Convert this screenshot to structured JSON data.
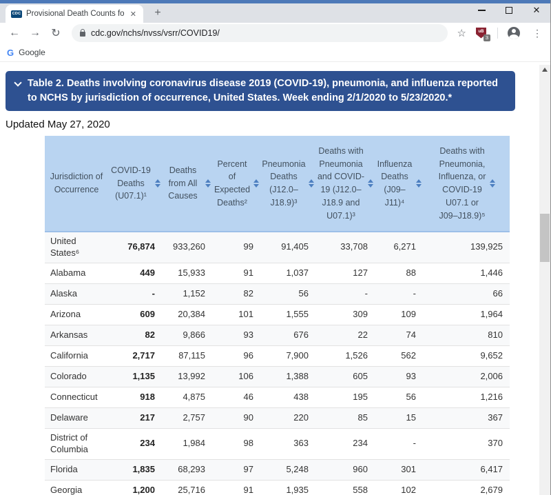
{
  "window": {
    "close_glyph": "✕"
  },
  "browser": {
    "favicon_text": "CDC",
    "tab_title": "Provisional Death Counts for Cor",
    "new_tab_glyph": "+",
    "tab_close_glyph": "✕",
    "back_glyph": "←",
    "forward_glyph": "→",
    "reload_glyph": "↻",
    "url": "cdc.gov/nchs/nvss/vsrr/COVID19/",
    "star_glyph": "☆",
    "extension_initials": "uB",
    "extension_badge": "3",
    "menu_glyph": "⋮",
    "bookmark_icon": "G",
    "bookmark_label": "Google"
  },
  "page": {
    "banner_title": "Table 2. Deaths involving coronavirus disease 2019 (COVID-19), pneumonia, and influenza reported to NCHS by jurisdiction of occurrence, United States. Week ending 2/1/2020 to 5/23/2020.*",
    "updated_text": "Updated May 27, 2020"
  },
  "table": {
    "columns": [
      {
        "label": "Jurisdiction of Occurrence",
        "sortable": false
      },
      {
        "label": "COVID-19 Deaths (U07.1)¹",
        "sortable": true
      },
      {
        "label": "Deaths from All Causes",
        "sortable": true
      },
      {
        "label": "Percent of Expected Deaths²",
        "sortable": true
      },
      {
        "label": "Pneumonia Deaths (J12.0–J18.9)³",
        "sortable": true
      },
      {
        "label": "Deaths with Pneumonia and COVID-19 (J12.0–J18.9 and U07.1)³",
        "sortable": true
      },
      {
        "label": "Influenza Deaths (J09–J11)⁴",
        "sortable": true
      },
      {
        "label": "Deaths with Pneumonia, Influenza, or COVID-19 U07.1 or J09–J18.9)⁵",
        "sortable": true
      }
    ],
    "rows": [
      [
        "United States⁶",
        "76,874",
        "933,260",
        "99",
        "91,405",
        "33,708",
        "6,271",
        "139,925"
      ],
      [
        "Alabama",
        "449",
        "15,933",
        "91",
        "1,037",
        "127",
        "88",
        "1,446"
      ],
      [
        "Alaska",
        "-",
        "1,152",
        "82",
        "56",
        "-",
        "-",
        "66"
      ],
      [
        "Arizona",
        "609",
        "20,384",
        "101",
        "1,555",
        "309",
        "109",
        "1,964"
      ],
      [
        "Arkansas",
        "82",
        "9,866",
        "93",
        "676",
        "22",
        "74",
        "810"
      ],
      [
        "California",
        "2,717",
        "87,115",
        "96",
        "7,900",
        "1,526",
        "562",
        "9,652"
      ],
      [
        "Colorado",
        "1,135",
        "13,992",
        "106",
        "1,388",
        "605",
        "93",
        "2,006"
      ],
      [
        "Connecticut",
        "918",
        "4,875",
        "46",
        "438",
        "195",
        "56",
        "1,216"
      ],
      [
        "Delaware",
        "217",
        "2,757",
        "90",
        "220",
        "85",
        "15",
        "367"
      ],
      [
        "District of Columbia",
        "234",
        "1,984",
        "98",
        "363",
        "234",
        "-",
        "370"
      ],
      [
        "Florida",
        "1,835",
        "68,293",
        "97",
        "5,248",
        "960",
        "301",
        "6,417"
      ],
      [
        "Georgia",
        "1,200",
        "25,716",
        "91",
        "1,935",
        "558",
        "102",
        "2,679"
      ]
    ]
  },
  "colors": {
    "banner_bg": "#2e5191",
    "table_header_bg": "#b9d4f1",
    "sort_icon": "#4d7fc0",
    "extension_shield": "#8a2332",
    "tabstrip_bg": "#dee1e6",
    "top_edge": "#4d79b8"
  }
}
